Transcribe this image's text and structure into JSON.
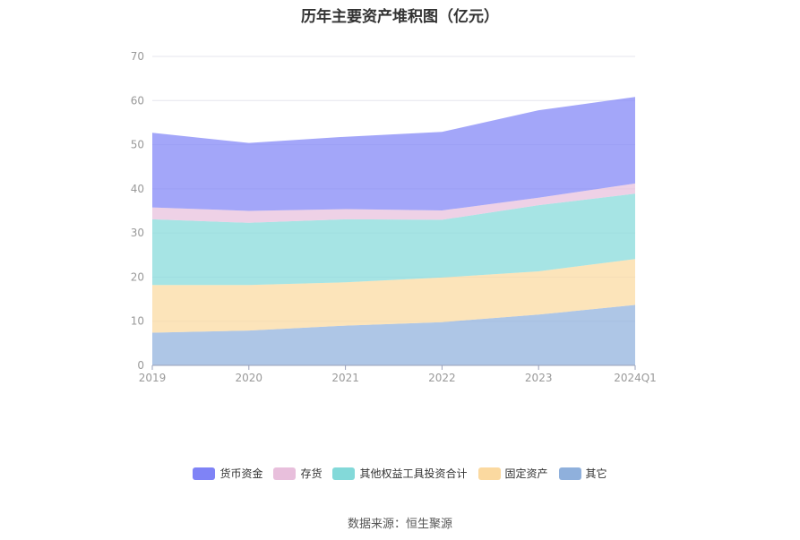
{
  "chart_data": {
    "type": "area",
    "stacked": true,
    "title": "历年主要资产堆积图（亿元）",
    "categories": [
      "2019",
      "2020",
      "2021",
      "2022",
      "2023",
      "2024Q1"
    ],
    "ylim": [
      0,
      70
    ],
    "yticks": [
      0,
      10,
      20,
      30,
      40,
      50,
      60,
      70
    ],
    "grid": true,
    "legend_position": "bottom",
    "series": [
      {
        "name": "其它",
        "color": "#8fb0dc",
        "values": [
          7.4,
          7.9,
          9.0,
          9.8,
          11.5,
          13.7
        ]
      },
      {
        "name": "固定资产",
        "color": "#fbd9a0",
        "values": [
          10.8,
          10.3,
          9.8,
          10.1,
          9.8,
          10.4
        ]
      },
      {
        "name": "其他权益工具投资合计",
        "color": "#83d9d9",
        "values": [
          14.9,
          14.1,
          14.3,
          13.1,
          15.0,
          14.8
        ]
      },
      {
        "name": "存货",
        "color": "#e8bfdc",
        "values": [
          2.7,
          2.7,
          2.3,
          2.1,
          1.7,
          2.3
        ]
      },
      {
        "name": "货币资金",
        "color": "#7f83f6",
        "values": [
          16.9,
          15.4,
          16.4,
          17.8,
          19.8,
          19.6
        ]
      }
    ]
  },
  "legend_items": [
    "货币资金",
    "存货",
    "其他权益工具投资合计",
    "固定资产",
    "其它"
  ],
  "source": "数据来源：恒生聚源"
}
